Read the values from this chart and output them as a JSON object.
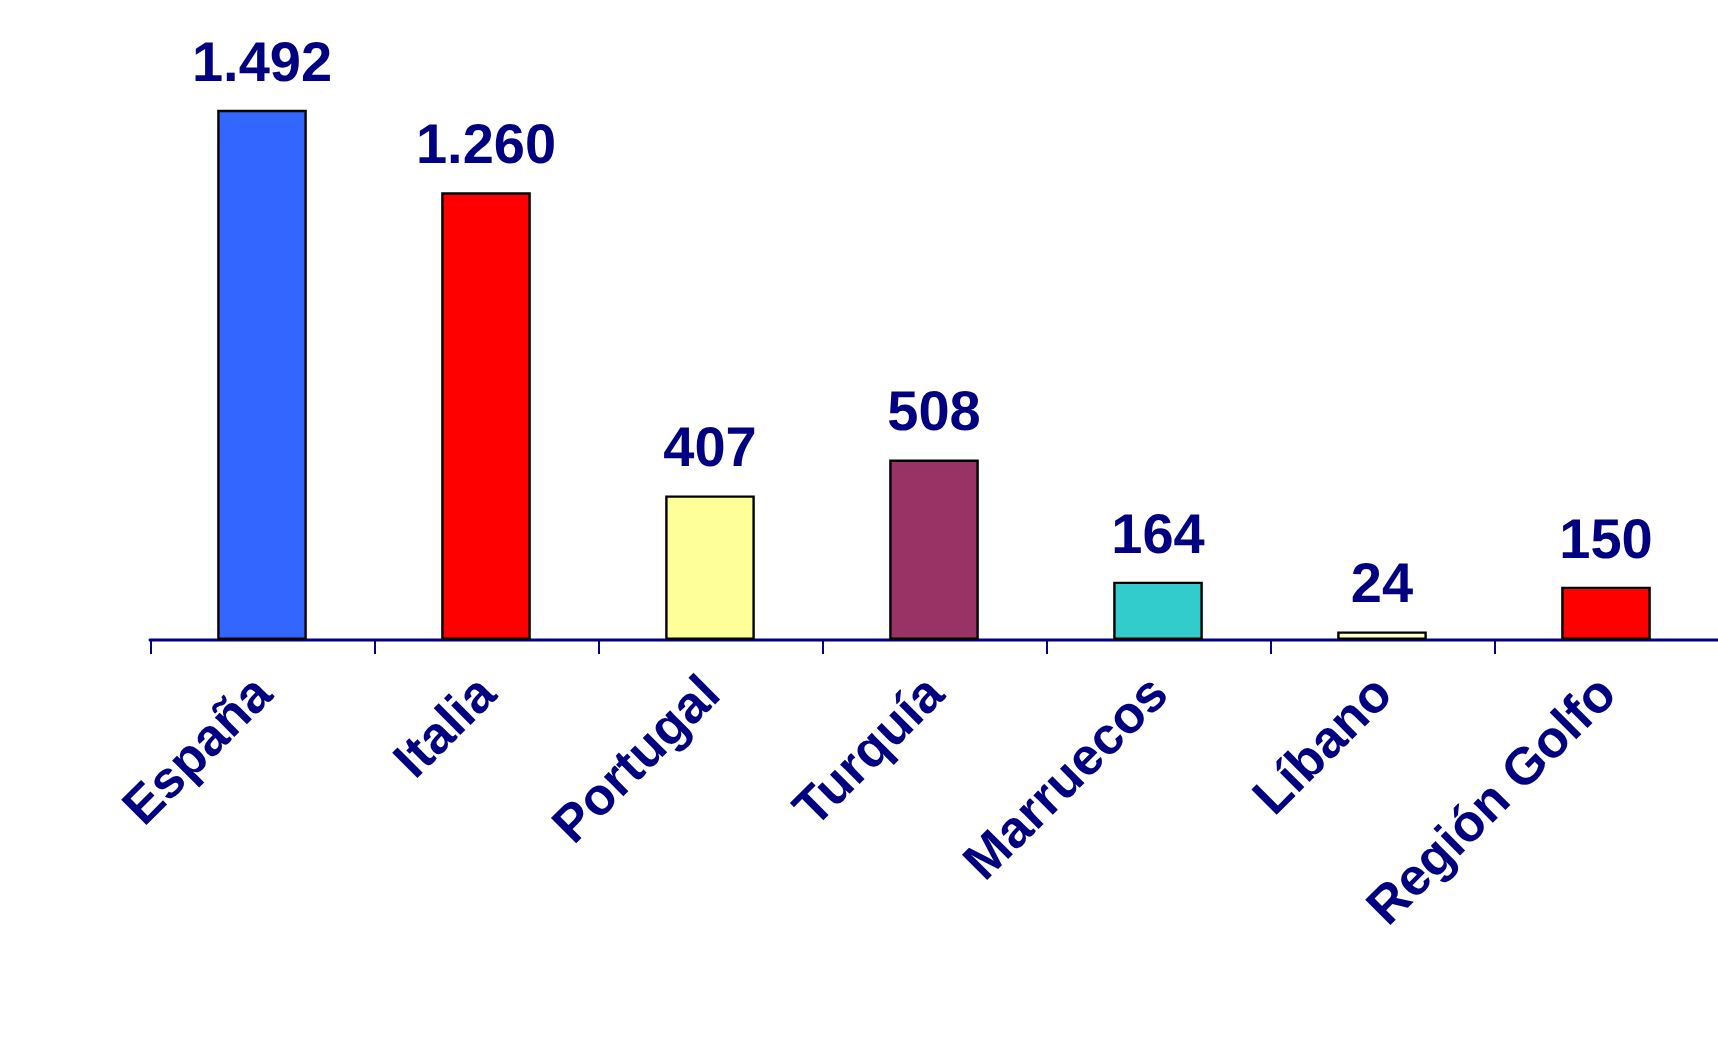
{
  "chart_data": {
    "type": "bar",
    "categories": [
      "España",
      "Italia",
      "Portugal",
      "Turquía",
      "Marruecos",
      "Líbano",
      "Región Golfo"
    ],
    "values": [
      1492,
      1260,
      407,
      508,
      164,
      24,
      150
    ],
    "value_labels": [
      "1.492",
      "1.260",
      "407",
      "508",
      "164",
      "24",
      "150"
    ],
    "colors": [
      "#3366ff",
      "#ff0000",
      "#ffff99",
      "#993366",
      "#33cccc",
      "#ffffcc",
      "#ff0000"
    ]
  }
}
